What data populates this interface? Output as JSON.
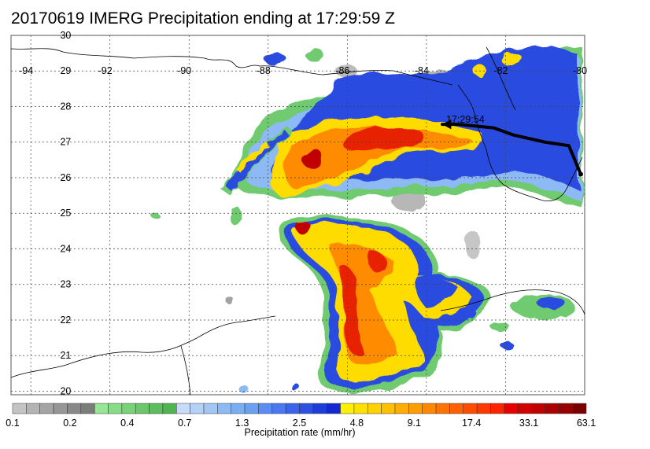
{
  "title": "20170619 IMERG Precipitation ending at 17:29:59 Z",
  "map": {
    "lon_range": [
      -94.5,
      -80
    ],
    "lat_range": [
      19.9,
      30
    ],
    "lon_ticks": [
      -94,
      -92,
      -90,
      -88,
      -86,
      -84,
      -82,
      -80
    ],
    "lon_tick_labels": [
      "-94",
      "-92",
      "-90",
      "-88",
      "-86",
      "-84",
      "-82",
      "-80"
    ],
    "lat_ticks": [
      30,
      29,
      28,
      27,
      26,
      25,
      24,
      23,
      22,
      21,
      20
    ],
    "lat_tick_labels": [
      "30",
      "29",
      "28",
      "27",
      "26",
      "25",
      "24",
      "23",
      "22",
      "21",
      "20"
    ],
    "grid": true,
    "track_label": "17:29:54",
    "track_points": [
      [
        -80.1,
        26.1
      ],
      [
        -80.4,
        26.9
      ],
      [
        -81.0,
        27.0
      ],
      [
        -81.8,
        27.2
      ],
      [
        -82.3,
        27.4
      ],
      [
        -83.2,
        27.5
      ],
      [
        -83.6,
        27.5
      ]
    ]
  },
  "colorbar": {
    "label": "Precipitation rate (mm/hr)",
    "tick_labels": [
      "0.1",
      "0.2",
      "0.4",
      "0.7",
      "1.3",
      "2.5",
      "4.8",
      "9.1",
      "17.4",
      "33.1",
      "63.1"
    ],
    "colors": [
      "#c4c4c4",
      "#b4b4b4",
      "#a4a4a4",
      "#969696",
      "#888888",
      "#7c7c7c",
      "#96e696",
      "#88dc88",
      "#78d278",
      "#6ac86a",
      "#5cbe5c",
      "#50b450",
      "#c8dcfa",
      "#b4d2f8",
      "#a2c6f6",
      "#8ebaf4",
      "#7aaef2",
      "#68a2f0",
      "#5a8cf4",
      "#4a78f0",
      "#3a64ea",
      "#2c50e2",
      "#1e3cda",
      "#1428d2",
      "#fff000",
      "#ffe100",
      "#ffd200",
      "#ffc000",
      "#ffae00",
      "#ff9c00",
      "#ff8800",
      "#ff7400",
      "#ff6000",
      "#ff4c00",
      "#ff3800",
      "#ff2400",
      "#e60000",
      "#d20000",
      "#be0000",
      "#aa0000",
      "#960000",
      "#7a0000"
    ]
  }
}
